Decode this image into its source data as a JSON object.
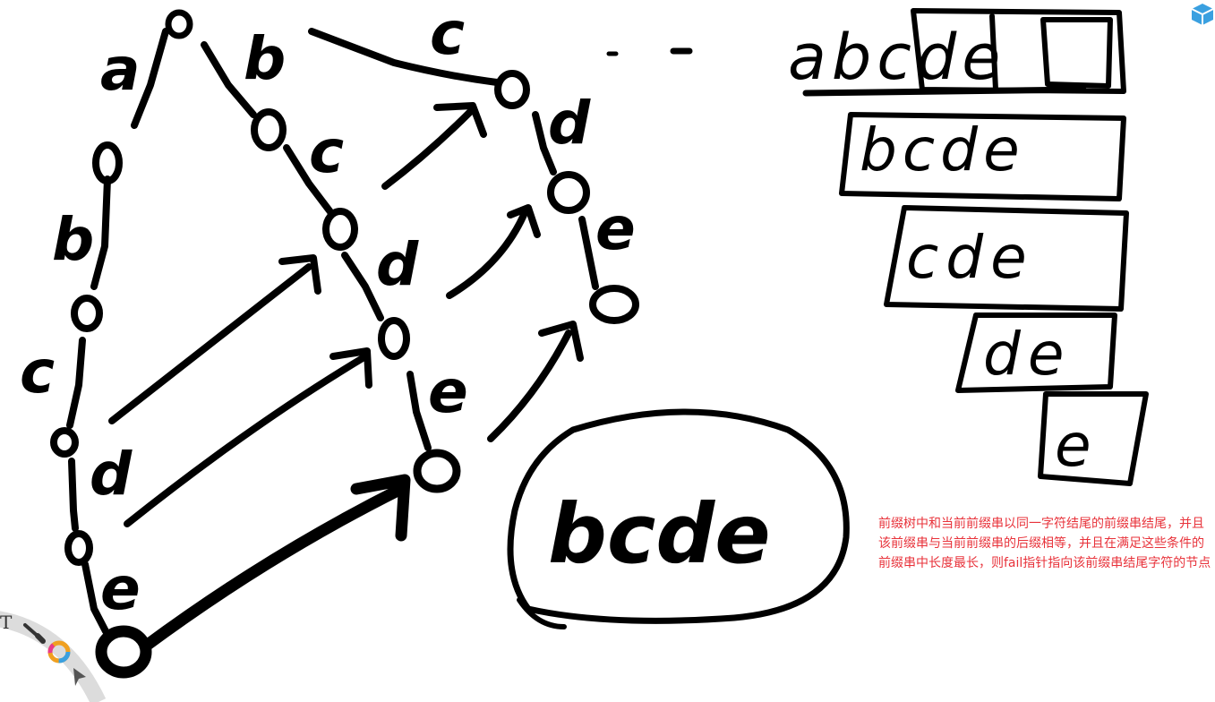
{
  "trie": {
    "edge_labels": [
      {
        "id": "root-a",
        "text": "a"
      },
      {
        "id": "root-b",
        "text": "b"
      },
      {
        "id": "root-c",
        "text": "c"
      },
      {
        "id": "a-b",
        "text": "b"
      },
      {
        "id": "ab-c",
        "text": "c"
      },
      {
        "id": "abc-d",
        "text": "d"
      },
      {
        "id": "abcd-e",
        "text": "e"
      },
      {
        "id": "b-c",
        "text": "c"
      },
      {
        "id": "bc-d",
        "text": "d"
      },
      {
        "id": "bcd-e",
        "text": "e"
      },
      {
        "id": "c-d",
        "text": "d"
      },
      {
        "id": "cd-e",
        "text": "e"
      }
    ]
  },
  "suffix_boxes": {
    "string": "abcde",
    "rows": [
      "bcde",
      "cde",
      "de",
      "e"
    ]
  },
  "circled_word": "bcde",
  "note": {
    "text": "前缀树中和当前前缀串以同一字符结尾的前缀串结尾，并且该前缀串与当前前缀串的后缀相等，并且在满足这些条件的前缀串中长度最长，则fail指针指向该前缀串结尾字符的节点",
    "color": "#e8333b"
  },
  "toolbar": {
    "tools": [
      "text-tool-icon",
      "brush-tool-icon",
      "color-wheel-icon",
      "pointer-tool-icon"
    ],
    "accent": "#3aa0e0"
  }
}
